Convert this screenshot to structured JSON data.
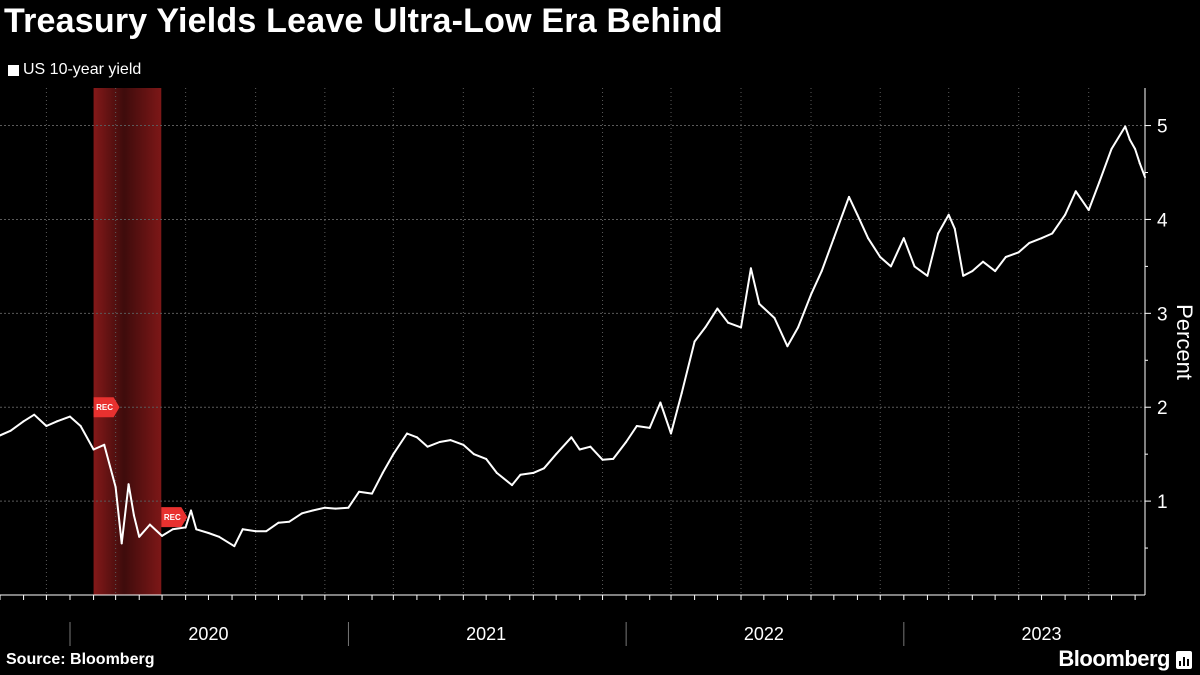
{
  "title": "Treasury Yields Leave Ultra-Low Era Behind",
  "legend_label": "US 10-year yield",
  "source": "Source: Bloomberg",
  "brand": "Bloomberg",
  "colors": {
    "background": "#000000",
    "line": "#ffffff",
    "grid": "#5a5a5a",
    "recession": "#8b1a1a",
    "recession_marker": "#e8312f"
  },
  "chart_data": {
    "type": "line",
    "title": "Treasury Yields Leave Ultra-Low Era Behind",
    "xlabel": "",
    "ylabel": "Percent",
    "xlim": [
      "2019-10-01",
      "2023-11-14"
    ],
    "ylim": [
      0,
      5.4
    ],
    "y_ticks": [
      1,
      2,
      3,
      4,
      5
    ],
    "y_axis_side": "right",
    "x_tick_labels": [
      "2020",
      "2021",
      "2022",
      "2023"
    ],
    "grid": true,
    "legend_position": "top-left",
    "recession_shading": {
      "start": "2020-02-01",
      "end": "2020-04-30",
      "label": "REC"
    },
    "series": [
      {
        "name": "US 10-year yield",
        "x": [
          "2019-10-01",
          "2019-10-15",
          "2019-11-01",
          "2019-11-15",
          "2019-12-01",
          "2019-12-15",
          "2020-01-01",
          "2020-01-15",
          "2020-02-01",
          "2020-02-15",
          "2020-03-01",
          "2020-03-09",
          "2020-03-18",
          "2020-03-25",
          "2020-04-01",
          "2020-04-15",
          "2020-05-01",
          "2020-05-15",
          "2020-06-01",
          "2020-06-08",
          "2020-06-15",
          "2020-07-01",
          "2020-07-15",
          "2020-08-04",
          "2020-08-15",
          "2020-09-01",
          "2020-09-15",
          "2020-10-01",
          "2020-10-15",
          "2020-11-01",
          "2020-11-15",
          "2020-12-01",
          "2020-12-15",
          "2021-01-01",
          "2021-01-15",
          "2021-02-01",
          "2021-02-15",
          "2021-03-01",
          "2021-03-19",
          "2021-04-01",
          "2021-04-15",
          "2021-05-01",
          "2021-05-15",
          "2021-06-01",
          "2021-06-15",
          "2021-07-01",
          "2021-07-15",
          "2021-08-04",
          "2021-08-15",
          "2021-09-01",
          "2021-09-15",
          "2021-10-01",
          "2021-10-21",
          "2021-11-01",
          "2021-11-15",
          "2021-12-01",
          "2021-12-15",
          "2022-01-01",
          "2022-01-15",
          "2022-02-01",
          "2022-02-15",
          "2022-03-01",
          "2022-03-15",
          "2022-04-01",
          "2022-04-15",
          "2022-05-01",
          "2022-05-15",
          "2022-06-01",
          "2022-06-14",
          "2022-06-25",
          "2022-07-15",
          "2022-08-01",
          "2022-08-15",
          "2022-09-01",
          "2022-09-15",
          "2022-10-01",
          "2022-10-21",
          "2022-11-01",
          "2022-11-15",
          "2022-12-01",
          "2022-12-15",
          "2023-01-01",
          "2023-01-15",
          "2023-02-01",
          "2023-02-15",
          "2023-03-01",
          "2023-03-09",
          "2023-03-20",
          "2023-04-01",
          "2023-04-15",
          "2023-05-01",
          "2023-05-15",
          "2023-06-01",
          "2023-06-15",
          "2023-07-01",
          "2023-07-15",
          "2023-08-01",
          "2023-08-15",
          "2023-09-01",
          "2023-09-15",
          "2023-10-01",
          "2023-10-19",
          "2023-10-25",
          "2023-11-01",
          "2023-11-07",
          "2023-11-14"
        ],
        "y": [
          1.7,
          1.75,
          1.85,
          1.92,
          1.8,
          1.85,
          1.9,
          1.8,
          1.55,
          1.6,
          1.15,
          0.55,
          1.18,
          0.85,
          0.62,
          0.75,
          0.63,
          0.7,
          0.72,
          0.9,
          0.7,
          0.66,
          0.62,
          0.52,
          0.7,
          0.68,
          0.68,
          0.77,
          0.78,
          0.87,
          0.9,
          0.93,
          0.92,
          0.93,
          1.1,
          1.08,
          1.3,
          1.5,
          1.72,
          1.68,
          1.58,
          1.63,
          1.65,
          1.6,
          1.5,
          1.45,
          1.3,
          1.17,
          1.28,
          1.3,
          1.35,
          1.5,
          1.68,
          1.55,
          1.58,
          1.44,
          1.45,
          1.63,
          1.8,
          1.78,
          2.05,
          1.72,
          2.15,
          2.7,
          2.85,
          3.05,
          2.9,
          2.85,
          3.48,
          3.1,
          2.95,
          2.65,
          2.85,
          3.2,
          3.45,
          3.8,
          4.24,
          4.05,
          3.8,
          3.6,
          3.5,
          3.8,
          3.5,
          3.4,
          3.85,
          4.05,
          3.9,
          3.4,
          3.45,
          3.55,
          3.45,
          3.6,
          3.65,
          3.75,
          3.8,
          3.85,
          4.05,
          4.3,
          4.1,
          4.4,
          4.75,
          4.99,
          4.85,
          4.75,
          4.6,
          4.45
        ]
      }
    ]
  }
}
